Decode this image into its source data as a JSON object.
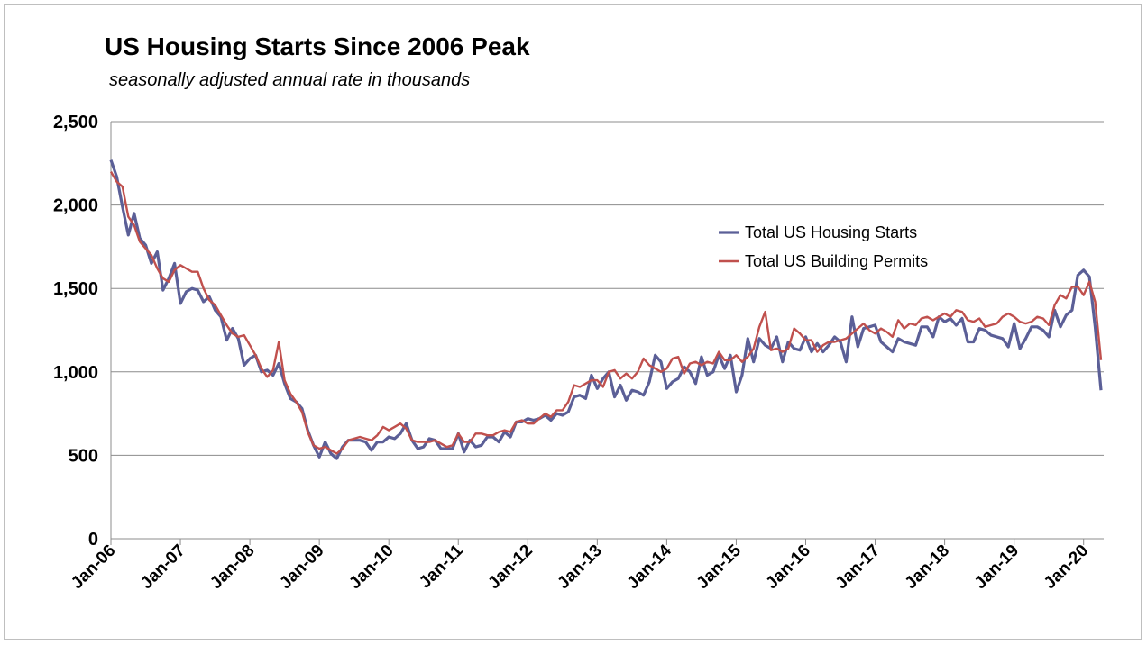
{
  "chart_data": {
    "type": "line",
    "title": "US Housing Starts Since 2006 Peak",
    "subtitle": "seasonally adjusted annual rate in thousands",
    "xlabel": "",
    "ylabel": "",
    "ylim": [
      0,
      2500
    ],
    "yticks": [
      0,
      500,
      1000,
      1500,
      2000,
      2500
    ],
    "ytick_labels": [
      "0",
      "500",
      "1,000",
      "1,500",
      "2,000",
      "2,500"
    ],
    "xtick_labels": [
      "Jan-06",
      "Jan-07",
      "Jan-08",
      "Jan-09",
      "Jan-10",
      "Jan-11",
      "Jan-12",
      "Jan-13",
      "Jan-14",
      "Jan-15",
      "Jan-16",
      "Jan-17",
      "Jan-18",
      "Jan-19",
      "Jan-20"
    ],
    "x_start": "Jan-06",
    "x_end": "Apr-20",
    "grid": "horizontal",
    "legend_position": "center-right",
    "series": [
      {
        "name": "Total US Housing Starts",
        "color": "#5b5f97",
        "values": [
          2270,
          2170,
          1990,
          1820,
          1950,
          1800,
          1760,
          1650,
          1720,
          1490,
          1560,
          1650,
          1410,
          1480,
          1500,
          1490,
          1420,
          1450,
          1370,
          1330,
          1190,
          1260,
          1200,
          1040,
          1080,
          1100,
          1000,
          1010,
          980,
          1050,
          930,
          840,
          820,
          780,
          650,
          560,
          490,
          580,
          510,
          480,
          550,
          590,
          590,
          590,
          580,
          530,
          580,
          580,
          610,
          600,
          630,
          690,
          590,
          540,
          550,
          600,
          590,
          540,
          540,
          540,
          630,
          520,
          590,
          550,
          560,
          610,
          610,
          580,
          640,
          610,
          700,
          700,
          720,
          710,
          720,
          740,
          710,
          750,
          740,
          760,
          850,
          860,
          840,
          980,
          900,
          960,
          1000,
          850,
          920,
          830,
          890,
          880,
          860,
          940,
          1100,
          1060,
          900,
          940,
          960,
          1030,
          1000,
          930,
          1090,
          980,
          1000,
          1100,
          1020,
          1100,
          880,
          980,
          1200,
          1060,
          1200,
          1160,
          1140,
          1210,
          1060,
          1180,
          1140,
          1130,
          1210,
          1120,
          1170,
          1120,
          1160,
          1210,
          1180,
          1060,
          1330,
          1150,
          1260,
          1270,
          1280,
          1180,
          1150,
          1120,
          1200,
          1180,
          1170,
          1160,
          1270,
          1270,
          1210,
          1330,
          1300,
          1320,
          1280,
          1320,
          1180,
          1180,
          1260,
          1250,
          1220,
          1210,
          1200,
          1150,
          1290,
          1140,
          1200,
          1270,
          1270,
          1250,
          1210,
          1370,
          1270,
          1340,
          1370,
          1580,
          1610,
          1570,
          1270,
          890
        ]
      },
      {
        "name": "Total US Building Permits",
        "color": "#c0504d",
        "values": [
          2200,
          2140,
          2110,
          1930,
          1880,
          1780,
          1740,
          1700,
          1620,
          1560,
          1540,
          1610,
          1640,
          1620,
          1600,
          1600,
          1500,
          1430,
          1400,
          1340,
          1280,
          1230,
          1210,
          1220,
          1160,
          1100,
          1020,
          970,
          1010,
          1180,
          950,
          870,
          820,
          760,
          640,
          560,
          540,
          550,
          530,
          510,
          540,
          590,
          600,
          610,
          600,
          590,
          620,
          670,
          650,
          670,
          690,
          660,
          590,
          580,
          580,
          580,
          590,
          570,
          550,
          560,
          630,
          580,
          580,
          630,
          630,
          620,
          620,
          640,
          650,
          640,
          700,
          710,
          690,
          690,
          720,
          750,
          730,
          770,
          770,
          820,
          920,
          910,
          930,
          950,
          950,
          910,
          1000,
          1010,
          960,
          990,
          960,
          1000,
          1080,
          1040,
          1020,
          1000,
          1020,
          1080,
          1090,
          990,
          1050,
          1060,
          1040,
          1060,
          1050,
          1120,
          1070,
          1070,
          1100,
          1060,
          1090,
          1140,
          1270,
          1360,
          1130,
          1140,
          1120,
          1140,
          1260,
          1230,
          1190,
          1190,
          1120,
          1160,
          1180,
          1180,
          1190,
          1200,
          1230,
          1260,
          1290,
          1250,
          1230,
          1260,
          1240,
          1210,
          1310,
          1260,
          1290,
          1280,
          1320,
          1330,
          1310,
          1330,
          1350,
          1330,
          1370,
          1360,
          1310,
          1300,
          1320,
          1270,
          1280,
          1290,
          1330,
          1350,
          1330,
          1300,
          1290,
          1300,
          1330,
          1320,
          1280,
          1400,
          1460,
          1440,
          1510,
          1510,
          1460,
          1540,
          1420,
          1070
        ]
      }
    ]
  }
}
